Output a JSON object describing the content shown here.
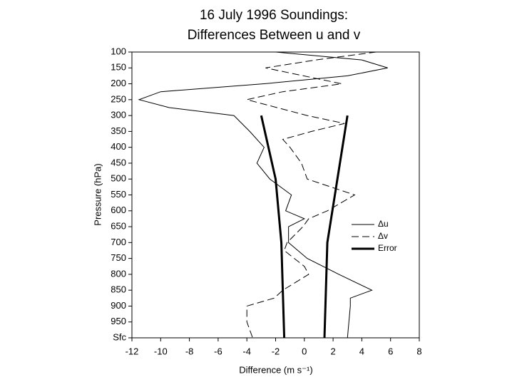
{
  "chart_data": {
    "type": "line",
    "title": "16 July 1996 Soundings:",
    "subtitle": "Differences Between u and v",
    "x_label": "Difference (m s⁻¹)",
    "y_label": "Pressure (hPa)",
    "xlim": [
      -12,
      8
    ],
    "xticks": [
      -12,
      -10,
      -8,
      -6,
      -4,
      -2,
      0,
      2,
      4,
      6,
      8
    ],
    "ylim": [
      100,
      1000
    ],
    "yticks": [
      100,
      150,
      200,
      250,
      300,
      350,
      400,
      450,
      500,
      550,
      600,
      650,
      700,
      750,
      800,
      850,
      900,
      950,
      {
        "value": 1000,
        "label": "Sfc"
      }
    ],
    "y_inverted": true,
    "series": [
      {
        "name": "Δu",
        "color": "#000000",
        "style": "solid",
        "pressure": [
          100,
          125,
          150,
          175,
          200,
          225,
          250,
          275,
          300,
          350,
          400,
          450,
          500,
          550,
          600,
          625,
          650,
          700,
          750,
          800,
          850,
          875,
          900,
          950,
          1000
        ],
        "values": [
          -2.0,
          4.0,
          5.8,
          3.0,
          -2.8,
          -10.0,
          -11.5,
          -9.4,
          -4.9,
          -3.8,
          -2.8,
          -3.3,
          -2.4,
          -0.9,
          -1.3,
          0.0,
          -1.1,
          -1.1,
          0.2,
          2.4,
          4.7,
          3.2,
          3.2,
          3.1,
          3.0
        ]
      },
      {
        "name": "Δv",
        "color": "#000000",
        "style": "dashed",
        "pressure": [
          100,
          125,
          150,
          200,
          225,
          250,
          300,
          325,
          350,
          375,
          400,
          450,
          500,
          550,
          600,
          625,
          650,
          700,
          725,
          775,
          800,
          850,
          875,
          900,
          950,
          1000
        ],
        "values": [
          5.0,
          0.8,
          -2.7,
          2.6,
          -1.5,
          -4.0,
          0.2,
          2.8,
          0.5,
          -1.5,
          -1.0,
          -0.2,
          0.2,
          3.5,
          1.6,
          0.3,
          -0.1,
          -1.2,
          -1.4,
          0.0,
          0.3,
          -1.5,
          -2.1,
          -4.0,
          -4.0,
          -3.6
        ]
      },
      {
        "name": "Error",
        "color": "#000000",
        "style": "thick",
        "pressure": [
          300,
          500,
          700,
          1000
        ],
        "lower": [
          -3.0,
          -2.0,
          -1.6,
          -1.4
        ],
        "upper": [
          3.0,
          2.3,
          1.6,
          1.4
        ]
      }
    ]
  }
}
